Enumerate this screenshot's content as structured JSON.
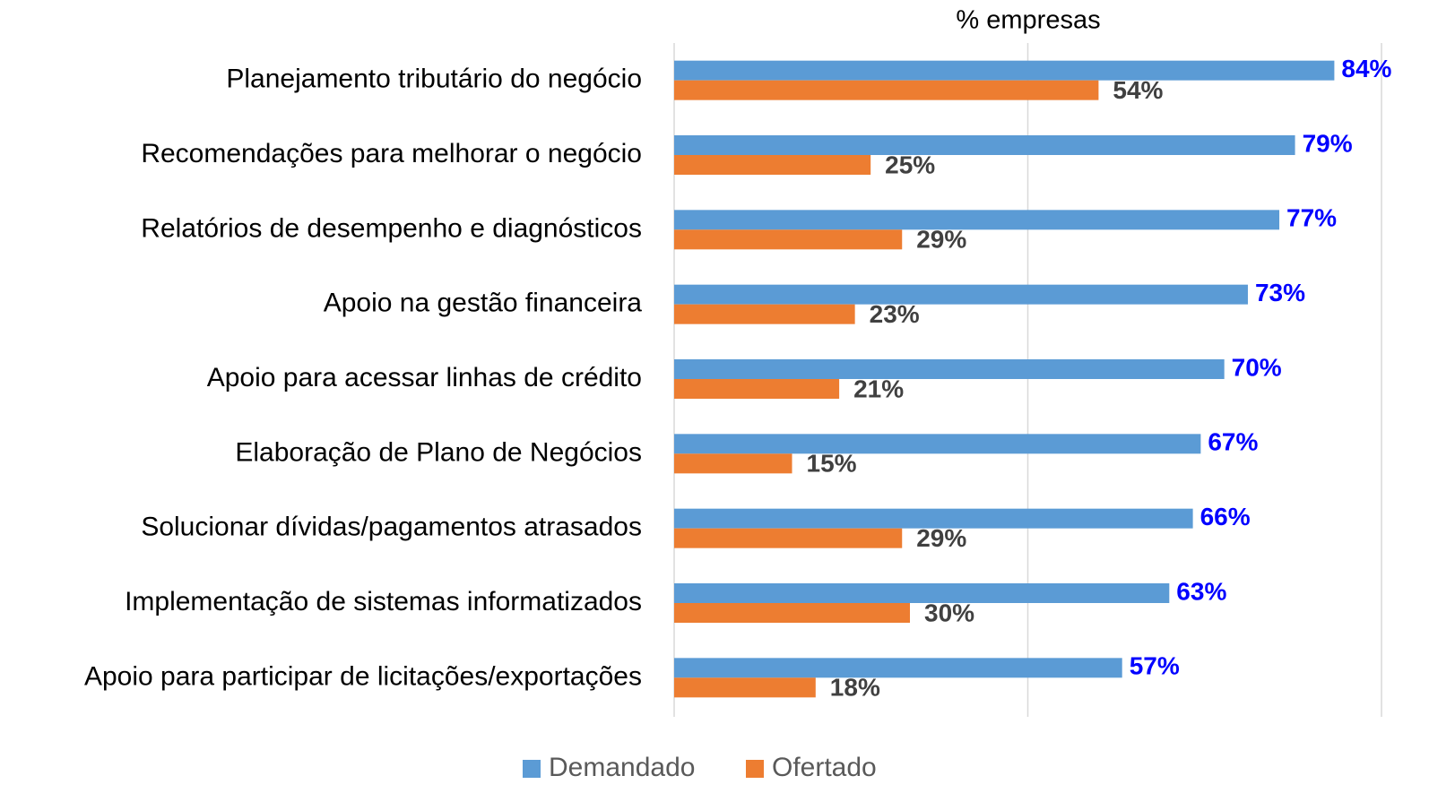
{
  "chart_data": {
    "type": "hbar",
    "x_label": "% empresas",
    "categories": [
      "Planejamento tributário do negócio",
      "Recomendações para melhorar o negócio",
      "Relatórios de desempenho e diagnósticos",
      "Apoio na gestão financeira",
      "Apoio para acessar linhas de crédito",
      "Elaboração de Plano de Negócios",
      "Solucionar dívidas/pagamentos atrasados",
      "Implementação de sistemas informatizados",
      "Apoio para participar de licitações/exportações"
    ],
    "series": [
      {
        "name": "Demandado",
        "color": "#5b9bd5",
        "label_color": "#0000ff",
        "values": [
          84,
          79,
          77,
          73,
          70,
          67,
          66,
          63,
          57
        ],
        "value_labels": [
          "84%",
          "79%",
          "77%",
          "73%",
          "70%",
          "67%",
          "66%",
          "63%",
          "57%"
        ]
      },
      {
        "name": "Ofertado",
        "color": "#ed7d31",
        "label_color": "#404040",
        "values": [
          54,
          25,
          29,
          23,
          21,
          15,
          29,
          30,
          18
        ],
        "value_labels": [
          "54%",
          "25%",
          "29%",
          "23%",
          "21%",
          "15%",
          "29%",
          "30%",
          "18%"
        ]
      }
    ],
    "xlim": [
      0,
      90
    ],
    "xticks": [
      0,
      45,
      90
    ],
    "grid": true,
    "legend": "bottom"
  }
}
